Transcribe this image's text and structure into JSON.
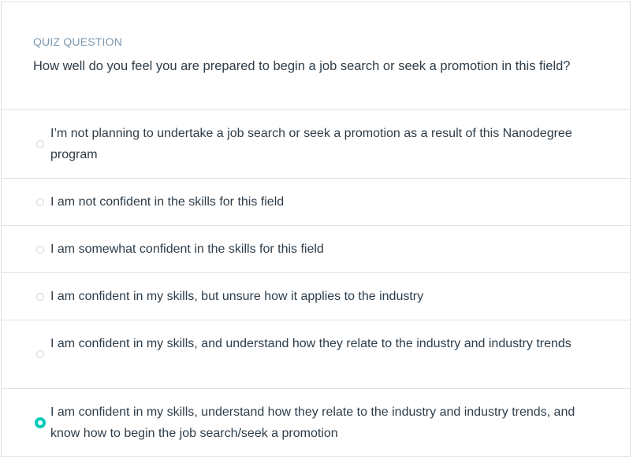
{
  "quiz": {
    "kicker": "QUIZ QUESTION",
    "question": "How well do you feel you are prepared to begin a job search or seek a promotion in this field?",
    "options": [
      {
        "label": "I’m not planning to undertake a job search or seek a promotion as a result of this Nanodegree program",
        "selected": false
      },
      {
        "label": "I am not confident in the skills for this field",
        "selected": false
      },
      {
        "label": "I am somewhat confident in the skills for this field",
        "selected": false
      },
      {
        "label": "I am confident in my skills, but unsure how it applies to the industry",
        "selected": false
      },
      {
        "label": "I am confident in my skills, and understand how they relate to the industry and industry trends",
        "selected": false
      },
      {
        "label": "I am confident in my skills, understand how they relate to the industry and industry trends, and know how to begin the job search/seek a promotion",
        "selected": true
      }
    ]
  },
  "colors": {
    "accent": "#02ccba",
    "border": "#dbe2e8",
    "kicker": "#7d97ad",
    "text": "#2e3d49"
  }
}
